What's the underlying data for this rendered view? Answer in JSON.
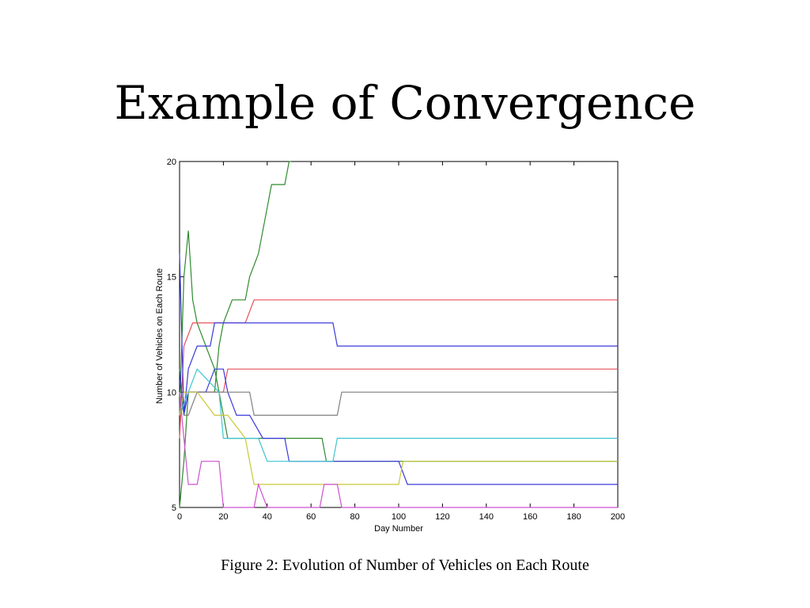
{
  "slide": {
    "title": "Example of Convergence",
    "caption": "Figure 2: Evolution of Number of Vehicles on Each Route"
  },
  "chart_data": {
    "type": "line",
    "xlabel": "Day Number",
    "ylabel": "Number of Vehicles on Each Route",
    "xlim": [
      0,
      200
    ],
    "ylim": [
      5,
      20
    ],
    "xticks": [
      0,
      20,
      40,
      60,
      80,
      100,
      120,
      140,
      160,
      180,
      200
    ],
    "yticks": [
      5,
      10,
      15,
      20
    ],
    "grid": false,
    "series": [
      {
        "color": "#2e8b2e",
        "points": [
          [
            0,
            5
          ],
          [
            2,
            7
          ],
          [
            4,
            10
          ],
          [
            8,
            10
          ],
          [
            16,
            10
          ],
          [
            18,
            12
          ],
          [
            20,
            13
          ],
          [
            24,
            14
          ],
          [
            30,
            14
          ],
          [
            32,
            15
          ],
          [
            36,
            16
          ],
          [
            40,
            18
          ],
          [
            42,
            19
          ],
          [
            48,
            19
          ],
          [
            50,
            20
          ],
          [
            51,
            20
          ]
        ]
      },
      {
        "color": "#2e8b2e",
        "points": [
          [
            0,
            9
          ],
          [
            2,
            15
          ],
          [
            4,
            17
          ],
          [
            6,
            14
          ],
          [
            8,
            13
          ],
          [
            12,
            12
          ],
          [
            16,
            11
          ],
          [
            18,
            10
          ],
          [
            20,
            9
          ],
          [
            22,
            8
          ],
          [
            30,
            8
          ],
          [
            32,
            8
          ],
          [
            65,
            8
          ],
          [
            67,
            7
          ],
          [
            200,
            7
          ]
        ]
      },
      {
        "color": "#e8505a",
        "points": [
          [
            0,
            8
          ],
          [
            2,
            12
          ],
          [
            4,
            12.5
          ],
          [
            6,
            13
          ],
          [
            30,
            13
          ],
          [
            34,
            14
          ],
          [
            200,
            14
          ]
        ]
      },
      {
        "color": "#e8505a",
        "points": [
          [
            0,
            9
          ],
          [
            2,
            10
          ],
          [
            8,
            10
          ],
          [
            18,
            10
          ],
          [
            20,
            10
          ],
          [
            22,
            11
          ],
          [
            200,
            11
          ]
        ]
      },
      {
        "color": "#3a3adb",
        "points": [
          [
            0,
            16
          ],
          [
            2,
            9
          ],
          [
            4,
            11
          ],
          [
            8,
            12
          ],
          [
            14,
            12
          ],
          [
            16,
            13
          ],
          [
            20,
            13
          ],
          [
            24,
            13
          ],
          [
            70,
            13
          ],
          [
            72,
            12
          ],
          [
            200,
            12
          ]
        ]
      },
      {
        "color": "#3a3adb",
        "points": [
          [
            0,
            11
          ],
          [
            2,
            9
          ],
          [
            4,
            10
          ],
          [
            8,
            10
          ],
          [
            12,
            10
          ],
          [
            16,
            11
          ],
          [
            20,
            11
          ],
          [
            22,
            10
          ],
          [
            26,
            9
          ],
          [
            32,
            9
          ],
          [
            38,
            8
          ],
          [
            48,
            8
          ],
          [
            50,
            7
          ],
          [
            100,
            7
          ],
          [
            104,
            6
          ],
          [
            200,
            6
          ]
        ]
      },
      {
        "color": "#808080",
        "points": [
          [
            0,
            10
          ],
          [
            2,
            9
          ],
          [
            4,
            9
          ],
          [
            8,
            10
          ],
          [
            18,
            10
          ],
          [
            26,
            10
          ],
          [
            32,
            10
          ],
          [
            34,
            9
          ],
          [
            72,
            9
          ],
          [
            74,
            10
          ],
          [
            200,
            10
          ]
        ]
      },
      {
        "color": "#3fc4d0",
        "points": [
          [
            0,
            9
          ],
          [
            4,
            10
          ],
          [
            8,
            11
          ],
          [
            18,
            10
          ],
          [
            20,
            8
          ],
          [
            28,
            8
          ],
          [
            36,
            8
          ],
          [
            40,
            7
          ],
          [
            70,
            7
          ],
          [
            72,
            8
          ],
          [
            200,
            8
          ]
        ]
      },
      {
        "color": "#c8c83a",
        "points": [
          [
            0,
            9
          ],
          [
            2,
            10
          ],
          [
            8,
            10
          ],
          [
            16,
            9
          ],
          [
            22,
            9
          ],
          [
            30,
            8
          ],
          [
            34,
            6
          ],
          [
            100,
            6
          ],
          [
            102,
            7
          ],
          [
            200,
            7
          ]
        ]
      },
      {
        "color": "#d050d0",
        "points": [
          [
            0,
            10
          ],
          [
            2,
            8
          ],
          [
            4,
            6
          ],
          [
            8,
            6
          ],
          [
            10,
            7
          ],
          [
            18,
            7
          ],
          [
            20,
            5
          ],
          [
            34,
            5
          ],
          [
            36,
            6
          ],
          [
            40,
            5
          ],
          [
            64,
            5
          ],
          [
            66,
            6
          ],
          [
            72,
            6
          ],
          [
            74,
            5
          ],
          [
            200,
            5
          ]
        ]
      }
    ]
  }
}
